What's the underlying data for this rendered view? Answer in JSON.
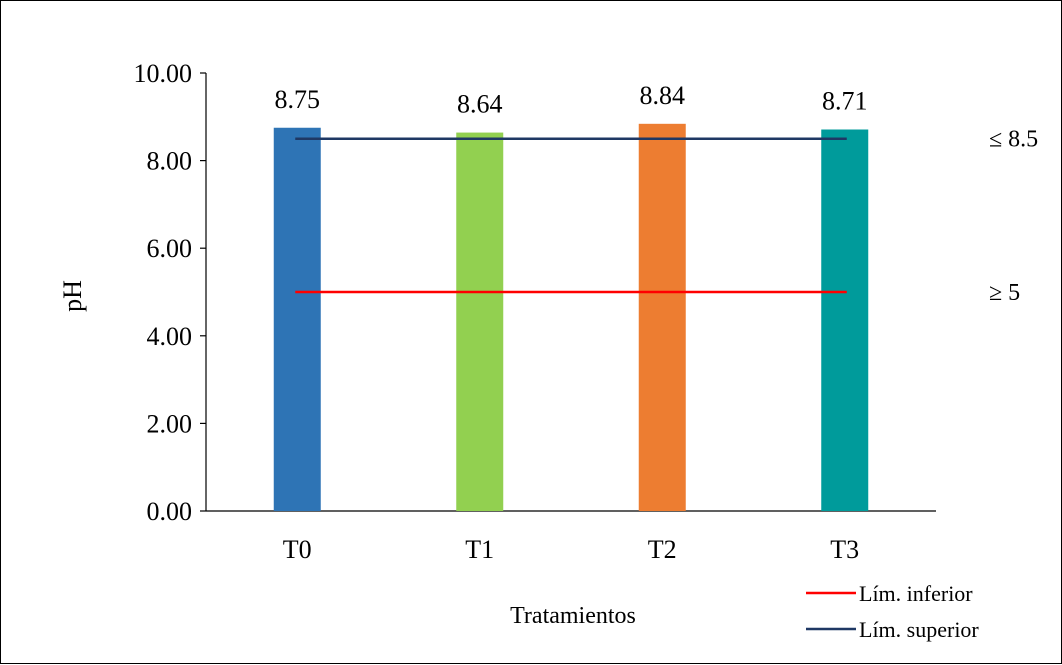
{
  "chart_data": {
    "type": "bar",
    "categories": [
      "T0",
      "T1",
      "T2",
      "T3"
    ],
    "values": [
      8.75,
      8.64,
      8.84,
      8.71
    ],
    "data_labels": [
      "8.75",
      "8.64",
      "8.84",
      "8.71"
    ],
    "bar_colors": [
      "#2E74B5",
      "#92D050",
      "#ED7D31",
      "#009B9B"
    ],
    "xlabel": "Tratamientos",
    "ylabel": "pH",
    "ylim": [
      0,
      10
    ],
    "yticks": [
      0,
      2,
      4,
      6,
      8,
      10
    ],
    "ytick_labels": [
      "0.00",
      "2.00",
      "4.00",
      "6.00",
      "8.00",
      "10.00"
    ],
    "grid": false,
    "reference_lines": [
      {
        "name": "Lím. inferior",
        "value": 5,
        "label": "≥ 5",
        "color": "#FF0000"
      },
      {
        "name": "Lím. superior",
        "value": 8.5,
        "label": "≤ 8.5",
        "color": "#1F3864"
      }
    ],
    "legend": {
      "placement": "bottom-right",
      "entries": [
        "Lím. inferior",
        "Lím. superior"
      ]
    }
  }
}
